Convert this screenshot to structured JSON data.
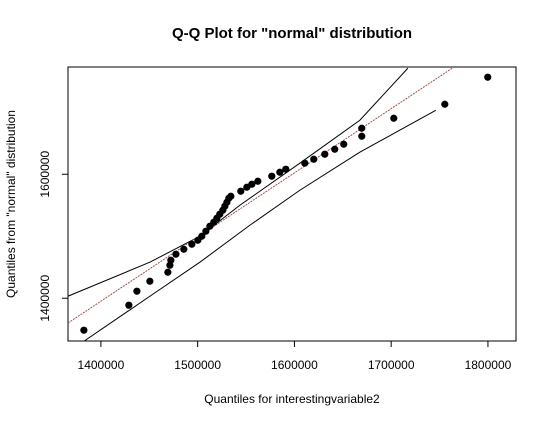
{
  "chart_data": {
    "type": "scatter",
    "title": "Q-Q Plot for \"normal\" distribution",
    "x_label": "Quantiles for interestingvariable2",
    "y_label": "Quantiles from \"normal\" distribution",
    "x": [
      1382400,
      1428900,
      1437200,
      1450600,
      1469200,
      1471300,
      1472300,
      1477500,
      1485700,
      1494000,
      1500200,
      1504300,
      1508500,
      1512600,
      1516700,
      1519800,
      1522900,
      1526000,
      1528100,
      1530200,
      1532200,
      1534300,
      1544600,
      1550800,
      1556000,
      1562200,
      1576600,
      1584900,
      1591100,
      1610700,
      1620000,
      1631400,
      1641700,
      1651000,
      1669600,
      1669600,
      1702700,
      1755400,
      1799800
    ],
    "y": [
      1348400,
      1388700,
      1411300,
      1427400,
      1441900,
      1453200,
      1461300,
      1471000,
      1479000,
      1487100,
      1493500,
      1500000,
      1508100,
      1516100,
      1522600,
      1529000,
      1535500,
      1541900,
      1548400,
      1554800,
      1561300,
      1564500,
      1572600,
      1579000,
      1583900,
      1588700,
      1596800,
      1603200,
      1608100,
      1617800,
      1624200,
      1632300,
      1640300,
      1648400,
      1661300,
      1674200,
      1690300,
      1712900,
      1756500
    ],
    "point_color": "#000000",
    "reference_line": {
      "x": [
        1366000,
        1763000
      ],
      "y": [
        1360000,
        1771000
      ],
      "color": "#a05050"
    },
    "confidence_bands": [
      {
        "x": [
          1365900,
          1450600,
          1502300,
          1543600,
          1605600,
          1667600,
          1717200
        ],
        "y": [
          1403200,
          1458100,
          1500000,
          1550000,
          1617800,
          1687100,
          1771000
        ]
      },
      {
        "x": [
          1382400,
          1450600,
          1502300,
          1553900,
          1605600,
          1667600,
          1746100
        ],
        "y": [
          1330600,
          1403200,
          1458100,
          1517700,
          1574200,
          1635500,
          1703200
        ]
      }
    ],
    "band_color": "#000000",
    "xlim": [
      1366000,
      1829000
    ],
    "ylim": [
      1331000,
      1773000
    ],
    "xticks": [
      1400000,
      1500000,
      1600000,
      1700000,
      1800000
    ],
    "yticks": [
      1400000,
      1600000
    ]
  }
}
